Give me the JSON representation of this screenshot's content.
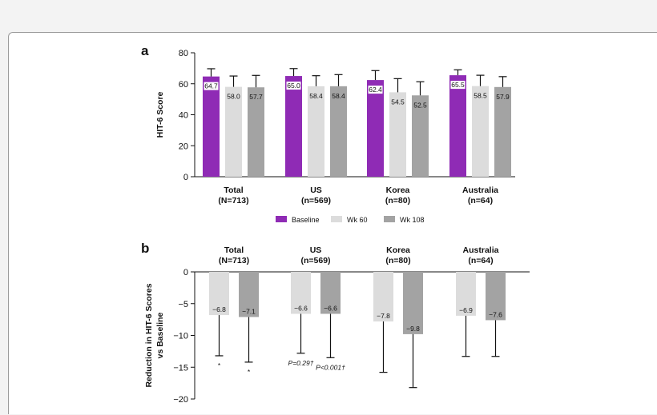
{
  "colors": {
    "baseline": "#8f2bb5",
    "wk60": "#dcdcdc",
    "wk108": "#a3a3a3",
    "axis": "#111111",
    "error": "#111111"
  },
  "chart_data": [
    {
      "panel": "a",
      "type": "bar",
      "ylabel": "HIT-6 Score",
      "ylim": [
        0,
        80
      ],
      "yticks": [
        0,
        20,
        40,
        60,
        80
      ],
      "categories": [
        {
          "line1": "Total",
          "line2": "(N=713)"
        },
        {
          "line1": "US",
          "line2": "(n=569)"
        },
        {
          "line1": "Korea",
          "line2": "(n=80)"
        },
        {
          "line1": "Australia",
          "line2": "(n=64)"
        }
      ],
      "series": [
        {
          "name": "Baseline",
          "values": [
            64.7,
            65.0,
            62.4,
            65.5
          ],
          "labels": [
            "64.7",
            "65.0",
            "62.4",
            "65.5"
          ],
          "error_upper": [
            69.7,
            69.8,
            68.5,
            69.0
          ]
        },
        {
          "name": "Wk 60",
          "values": [
            58.0,
            58.4,
            54.5,
            58.5
          ],
          "labels": [
            "58.0",
            "58.4",
            "54.5",
            "58.5"
          ],
          "error_upper": [
            65.0,
            65.2,
            63.3,
            65.5
          ]
        },
        {
          "name": "Wk 108",
          "values": [
            57.7,
            58.4,
            52.5,
            57.9
          ],
          "labels": [
            "57.7",
            "58.4",
            "52.5",
            "57.9"
          ],
          "error_upper": [
            65.4,
            65.9,
            61.3,
            64.6
          ]
        }
      ],
      "legend": {
        "placement": "bottom",
        "items": [
          "Baseline",
          "Wk 60",
          "Wk 108"
        ]
      }
    },
    {
      "panel": "b",
      "type": "bar",
      "ylabel_line1": "Reduction in HIT-6 Scores",
      "ylabel_line2": "vs Baseline",
      "ylim": [
        -20,
        0
      ],
      "yticks": [
        0,
        -5,
        -10,
        -15,
        -20
      ],
      "categories": [
        {
          "line1": "Total",
          "line2": "(N=713)"
        },
        {
          "line1": "US",
          "line2": "(n=569)"
        },
        {
          "line1": "Korea",
          "line2": "(n=80)"
        },
        {
          "line1": "Australia",
          "line2": "(n=64)"
        }
      ],
      "series": [
        {
          "name": "Wk 60",
          "values": [
            -6.8,
            -6.6,
            -7.8,
            -6.9
          ],
          "labels": [
            "−6.8",
            "−6.6",
            "−7.8",
            "−6.9"
          ],
          "error_lower": [
            -13.2,
            -12.8,
            -15.8,
            -13.3
          ]
        },
        {
          "name": "Wk 108",
          "values": [
            -7.1,
            -6.6,
            -9.8,
            -7.6
          ],
          "labels": [
            "−7.1",
            "−6.6",
            "−9.8",
            "−7.6"
          ],
          "error_lower": [
            -14.2,
            -13.5,
            -18.2,
            -13.3
          ]
        }
      ],
      "annotations": [
        {
          "category": 0,
          "series": 0,
          "text": "*"
        },
        {
          "category": 0,
          "series": 1,
          "text": "*"
        },
        {
          "category": 1,
          "series": 0,
          "text": "P=0.29†"
        },
        {
          "category": 1,
          "series": 1,
          "text": "P<0.001†"
        }
      ]
    }
  ]
}
